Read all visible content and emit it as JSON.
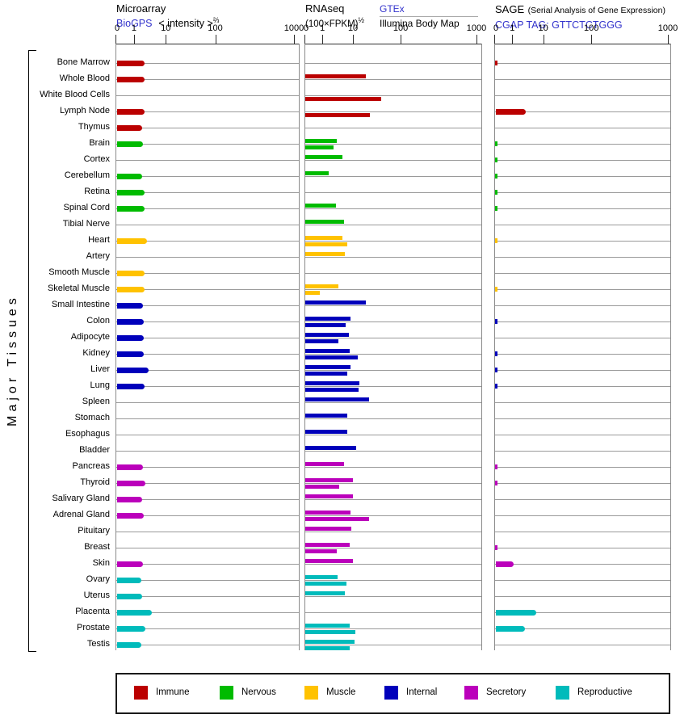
{
  "header": {
    "microarray": {
      "title": "Microarray",
      "link": "BioGPS",
      "subtitle": "< intensity >",
      "subtitle_sup": "⅔"
    },
    "rnaseq": {
      "title": "RNAseq",
      "subtitle": "(100×FPKM)",
      "subtitle_sup": "½",
      "link": "GTEx",
      "source2": "Illumina Body Map"
    },
    "sage": {
      "title": "SAGE",
      "note": "(Serial Analysis of Gene Expression)",
      "link": "CGAP TAG: GTTCTCTGGG"
    }
  },
  "left_label": "Major Tissues",
  "colors": {
    "immune": "#bb0000",
    "nervous": "#00bb00",
    "muscle": "#ffc200",
    "internal": "#0000bb",
    "secretory": "#bb00bb",
    "reproductive": "#00bbbb",
    "link_blue": "#3333cc"
  },
  "legend": [
    {
      "label": "Immune",
      "category": "immune"
    },
    {
      "label": "Nervous",
      "category": "nervous"
    },
    {
      "label": "Muscle",
      "category": "muscle"
    },
    {
      "label": "Internal",
      "category": "internal"
    },
    {
      "label": "Secretory",
      "category": "secretory"
    },
    {
      "label": "Reproductive",
      "category": "reproductive"
    }
  ],
  "chart_data": {
    "type": "bar",
    "orientation": "horizontal",
    "axis_ticks": [
      0,
      1,
      10,
      100,
      1000
    ],
    "panels": [
      {
        "name": "Microarray",
        "source": "BioGPS",
        "unit": "intensity^(2/3)"
      },
      {
        "name": "RNAseq",
        "sources": [
          "GTEx (bar above row line)",
          "Illumina Body Map (bar below row line)"
        ],
        "unit": "(100×FPKM)^(1/2)"
      },
      {
        "name": "SAGE",
        "source": "CGAP",
        "tag": "GTTCTCTGGG"
      }
    ],
    "tissues": [
      {
        "name": "Bone Marrow",
        "category": "immune",
        "microarray": 2.1,
        "rnaseq_gtex": null,
        "rnaseq_illumina": null,
        "sage": 0.05
      },
      {
        "name": "Whole Blood",
        "category": "immune",
        "microarray": 2.2,
        "rnaseq_gtex": 18,
        "rnaseq_illumina": null,
        "sage": null
      },
      {
        "name": "White Blood Cells",
        "category": "immune",
        "microarray": null,
        "rnaseq_gtex": null,
        "rnaseq_illumina": 37,
        "sage": null
      },
      {
        "name": "Lymph Node",
        "category": "immune",
        "microarray": 2.1,
        "rnaseq_gtex": null,
        "rnaseq_illumina": 22,
        "sage": 2.8
      },
      {
        "name": "Thymus",
        "category": "immune",
        "microarray": 1.8,
        "rnaseq_gtex": null,
        "rnaseq_illumina": null,
        "sage": null
      },
      {
        "name": "Brain",
        "category": "nervous",
        "microarray": 1.9,
        "rnaseq_gtex": 2.8,
        "rnaseq_illumina": 2.2,
        "sage": 0.05
      },
      {
        "name": "Cortex",
        "category": "nervous",
        "microarray": null,
        "rnaseq_gtex": 4.3,
        "rnaseq_illumina": null,
        "sage": 0.05
      },
      {
        "name": "Cerebellum",
        "category": "nervous",
        "microarray": 1.8,
        "rnaseq_gtex": 1.5,
        "rnaseq_illumina": null,
        "sage": 0.05
      },
      {
        "name": "Retina",
        "category": "nervous",
        "microarray": 2.2,
        "rnaseq_gtex": null,
        "rnaseq_illumina": null,
        "sage": 0.05
      },
      {
        "name": "Spinal Cord",
        "category": "nervous",
        "microarray": 2.2,
        "rnaseq_gtex": 2.6,
        "rnaseq_illumina": null,
        "sage": 0.05
      },
      {
        "name": "Tibial Nerve",
        "category": "nervous",
        "microarray": null,
        "rnaseq_gtex": 4.8,
        "rnaseq_illumina": null,
        "sage": null
      },
      {
        "name": "Heart",
        "category": "muscle",
        "microarray": 2.6,
        "rnaseq_gtex": 4.3,
        "rnaseq_illumina": 6.0,
        "sage": 0.05
      },
      {
        "name": "Artery",
        "category": "muscle",
        "microarray": null,
        "rnaseq_gtex": 5.2,
        "rnaseq_illumina": null,
        "sage": null
      },
      {
        "name": "Smooth Muscle",
        "category": "muscle",
        "microarray": 2.1,
        "rnaseq_gtex": null,
        "rnaseq_illumina": null,
        "sage": null
      },
      {
        "name": "Skeletal Muscle",
        "category": "muscle",
        "microarray": 2.2,
        "rnaseq_gtex": 3.1,
        "rnaseq_illumina": 0.8,
        "sage": 0.05
      },
      {
        "name": "Small Intestine",
        "category": "internal",
        "microarray": 1.9,
        "rnaseq_gtex": 18,
        "rnaseq_illumina": null,
        "sage": null
      },
      {
        "name": "Colon",
        "category": "internal",
        "microarray": 2.0,
        "rnaseq_gtex": 7.9,
        "rnaseq_illumina": 5.5,
        "sage": 0.05
      },
      {
        "name": "Adipocyte",
        "category": "internal",
        "microarray": 2.0,
        "rnaseq_gtex": 7.0,
        "rnaseq_illumina": 3.1,
        "sage": null
      },
      {
        "name": "Kidney",
        "category": "internal",
        "microarray": 2.0,
        "rnaseq_gtex": 7.4,
        "rnaseq_illumina": 12,
        "sage": 0.05
      },
      {
        "name": "Liver",
        "category": "internal",
        "microarray": 2.9,
        "rnaseq_gtex": 7.9,
        "rnaseq_illumina": 6.0,
        "sage": 0.05
      },
      {
        "name": "Lung",
        "category": "internal",
        "microarray": 2.2,
        "rnaseq_gtex": 13,
        "rnaseq_illumina": 12.5,
        "sage": 0.05
      },
      {
        "name": "Spleen",
        "category": "internal",
        "microarray": null,
        "rnaseq_gtex": 21,
        "rnaseq_illumina": null,
        "sage": null
      },
      {
        "name": "Stomach",
        "category": "internal",
        "microarray": null,
        "rnaseq_gtex": 6.2,
        "rnaseq_illumina": null,
        "sage": null
      },
      {
        "name": "Esophagus",
        "category": "internal",
        "microarray": null,
        "rnaseq_gtex": 6.2,
        "rnaseq_illumina": null,
        "sage": null
      },
      {
        "name": "Bladder",
        "category": "internal",
        "microarray": null,
        "rnaseq_gtex": 11,
        "rnaseq_illumina": null,
        "sage": null
      },
      {
        "name": "Pancreas",
        "category": "secretory",
        "microarray": 1.9,
        "rnaseq_gtex": 4.8,
        "rnaseq_illumina": null,
        "sage": 0.05
      },
      {
        "name": "Thyroid",
        "category": "secretory",
        "microarray": 2.3,
        "rnaseq_gtex": 9.3,
        "rnaseq_illumina": 3.4,
        "sage": 0.05
      },
      {
        "name": "Salivary Gland",
        "category": "secretory",
        "microarray": 1.8,
        "rnaseq_gtex": 9.3,
        "rnaseq_illumina": null,
        "sage": null
      },
      {
        "name": "Adrenal Gland",
        "category": "secretory",
        "microarray": 2.0,
        "rnaseq_gtex": 7.9,
        "rnaseq_illumina": 21,
        "sage": null
      },
      {
        "name": "Pituitary",
        "category": "secretory",
        "microarray": null,
        "rnaseq_gtex": 8.5,
        "rnaseq_illumina": null,
        "sage": null
      },
      {
        "name": "Breast",
        "category": "secretory",
        "microarray": null,
        "rnaseq_gtex": 7.2,
        "rnaseq_illumina": 2.7,
        "sage": 0.05
      },
      {
        "name": "Skin",
        "category": "secretory",
        "microarray": 1.9,
        "rnaseq_gtex": 9.3,
        "rnaseq_illumina": null,
        "sage": 1.1
      },
      {
        "name": "Ovary",
        "category": "reproductive",
        "microarray": 1.65,
        "rnaseq_gtex": 3.0,
        "rnaseq_illumina": 5.9,
        "sage": null
      },
      {
        "name": "Uterus",
        "category": "reproductive",
        "microarray": 1.8,
        "rnaseq_gtex": 5.1,
        "rnaseq_illumina": null,
        "sage": null
      },
      {
        "name": "Placenta",
        "category": "reproductive",
        "microarray": 3.7,
        "rnaseq_gtex": null,
        "rnaseq_illumina": null,
        "sage": 6.1
      },
      {
        "name": "Prostate",
        "category": "reproductive",
        "microarray": 2.3,
        "rnaseq_gtex": 7.2,
        "rnaseq_illumina": 10.8,
        "sage": 2.5
      },
      {
        "name": "Testis",
        "category": "reproductive",
        "microarray": 1.7,
        "rnaseq_gtex": 10.4,
        "rnaseq_illumina": 7.4,
        "sage": null
      }
    ]
  }
}
